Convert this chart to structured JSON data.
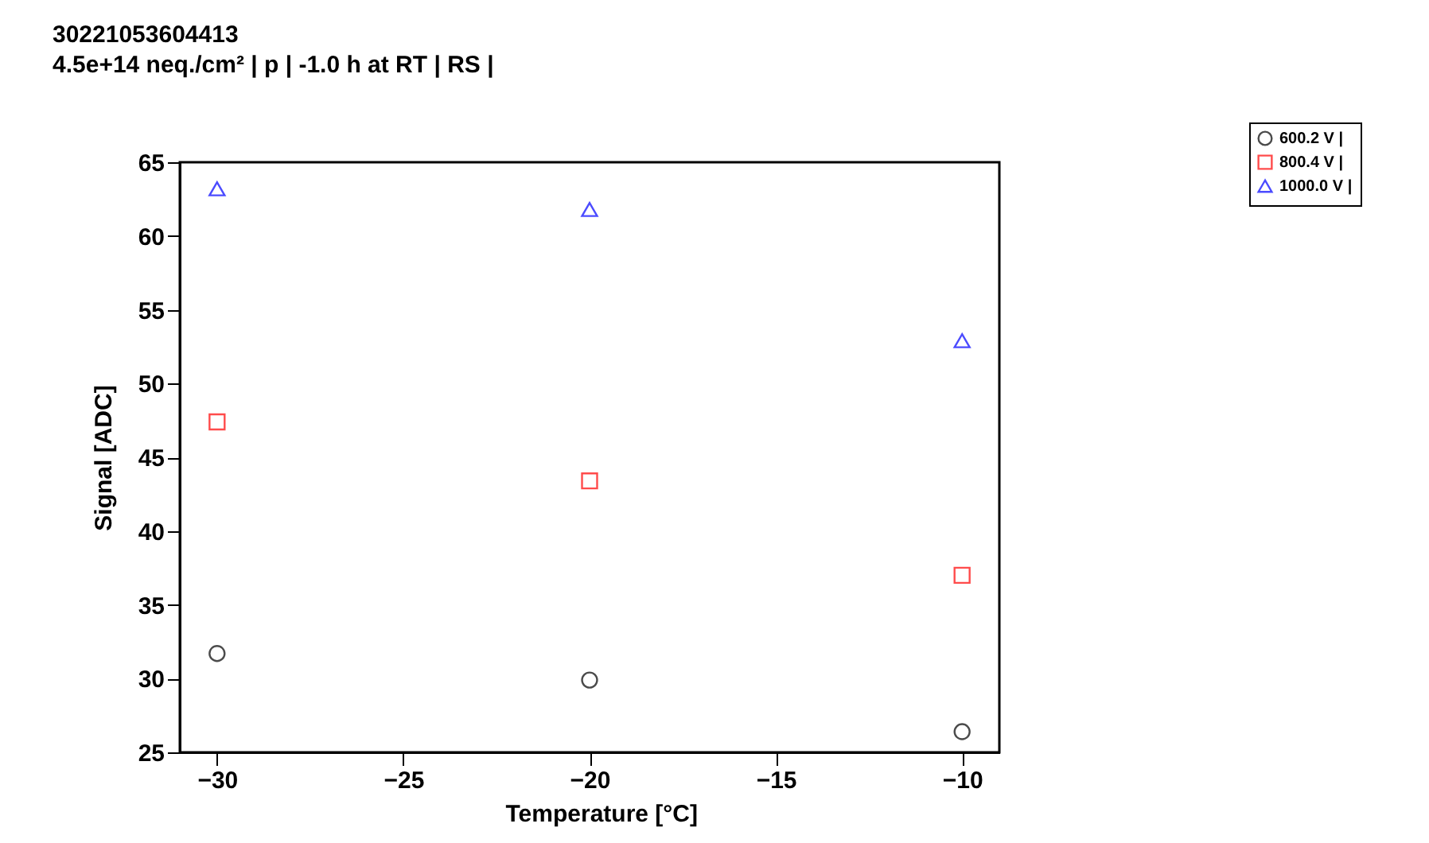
{
  "chart_data": {
    "type": "scatter",
    "title": "30221053604413",
    "subtitle": "4.5e+14 neq./cm² | p | -1.0 h at RT | RS |",
    "xlabel": "Temperature [°C]",
    "ylabel": "Signal [ADC]",
    "x": [
      -30,
      -20,
      -10
    ],
    "series": [
      {
        "name": "600.2 V |",
        "color": "#000000",
        "marker": "circle",
        "values": [
          31.7,
          29.9,
          26.4
        ]
      },
      {
        "name": "800.4 V |",
        "color": "#ff0000",
        "marker": "square",
        "values": [
          47.4,
          43.4,
          37.0
        ]
      },
      {
        "name": "1000.0 V |",
        "color": "#0000ff",
        "marker": "triangle",
        "values": [
          63.2,
          61.8,
          52.9
        ]
      }
    ],
    "xlim": [
      -31,
      -9
    ],
    "xticks": [
      -30,
      -25,
      -20,
      -15,
      -10
    ],
    "ylim": [
      25,
      65
    ],
    "yticks": [
      25,
      30,
      35,
      40,
      45,
      50,
      55,
      60,
      65
    ],
    "grid": false,
    "legend": "top right"
  }
}
